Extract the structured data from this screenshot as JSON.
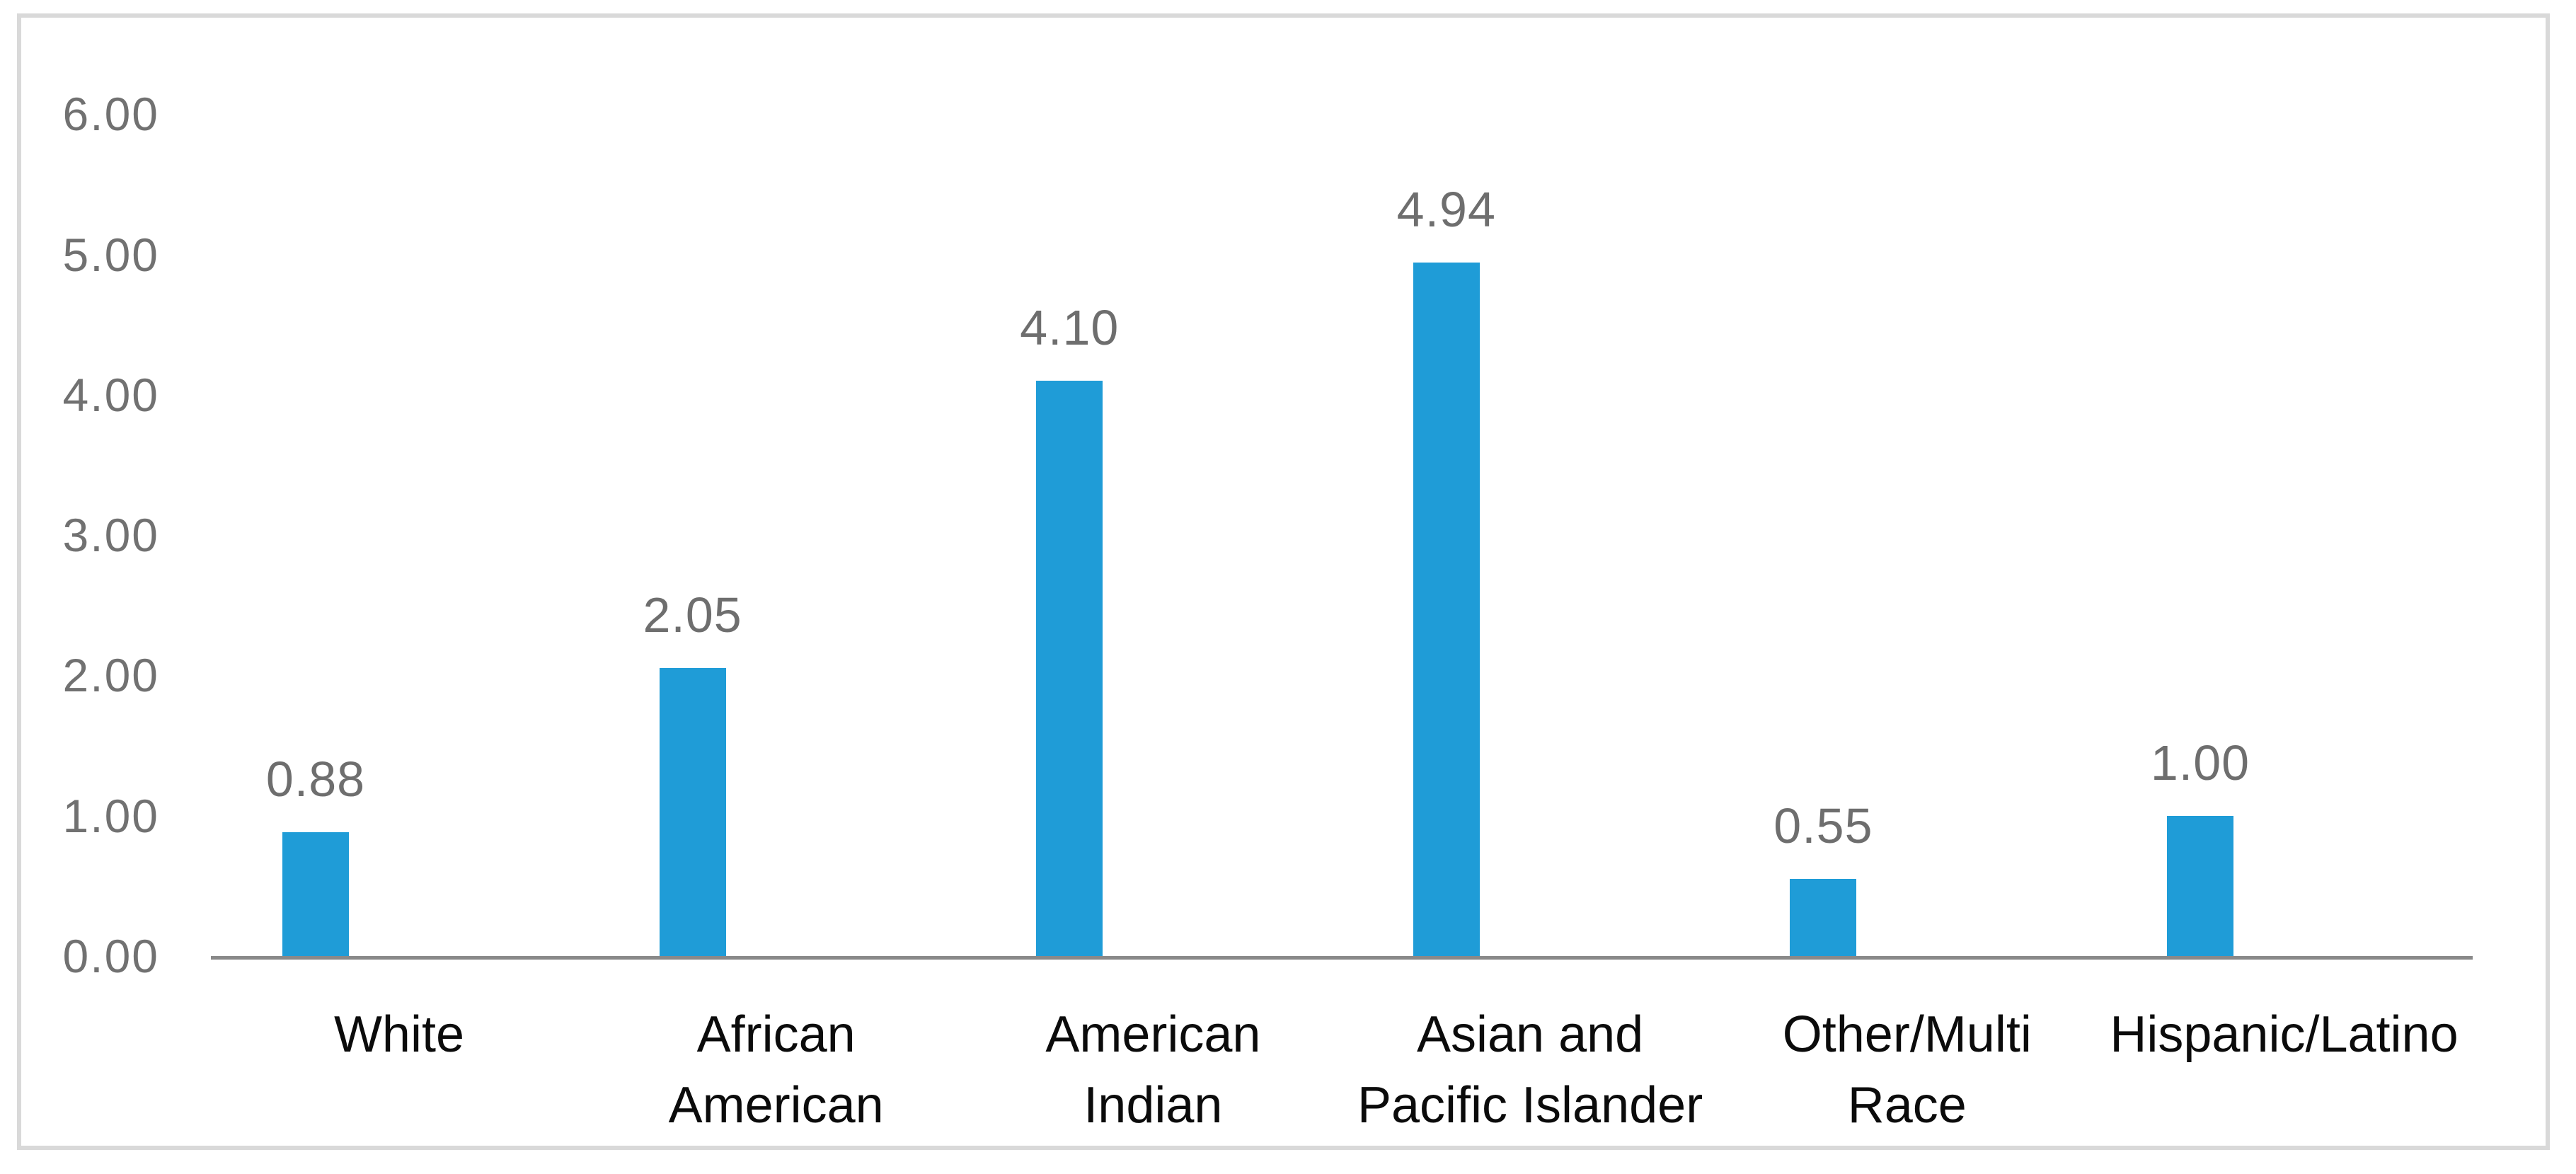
{
  "chart_data": {
    "type": "bar",
    "title": "",
    "categories": [
      "White",
      "African American",
      "American Indian",
      "Asian and Pacific Islander",
      "Other/Multi Race",
      "Hispanic/Latino"
    ],
    "category_display": [
      "White",
      "African\nAmerican",
      "American\nIndian",
      "Asian and\nPacific Islander",
      "Other/Multi\nRace",
      "Hispanic/Latino"
    ],
    "values": [
      0.88,
      2.05,
      4.1,
      4.94,
      0.55,
      1.0
    ],
    "value_labels": [
      "0.88",
      "2.05",
      "4.10",
      "4.94",
      "0.55",
      "1.00"
    ],
    "ytick_values": [
      0,
      1,
      2,
      3,
      4,
      5,
      6
    ],
    "ytick_labels": [
      "0.00",
      "1.00",
      "2.00",
      "3.00",
      "4.00",
      "5.00",
      "6.00"
    ],
    "ylim": [
      0,
      6
    ],
    "grid": false,
    "legend": "none",
    "xlabel": "",
    "ylabel": "",
    "colors": {
      "bar": "#1f9cd7",
      "axis_line": "#898989",
      "tick_text": "#717171",
      "category_text": "#0b0b0b",
      "frame_border": "#d9d9d9",
      "background": "#ffffff"
    }
  }
}
